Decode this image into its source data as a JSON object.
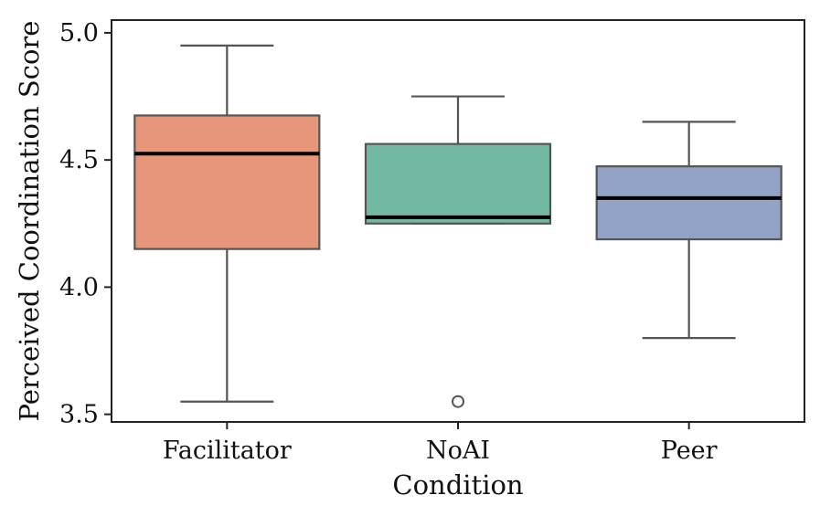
{
  "chart_data": {
    "type": "box",
    "xlabel": "Condition",
    "ylabel": "Perceived Coordination Score",
    "ylim": [
      3.47,
      5.05
    ],
    "yticks": [
      3.5,
      4.0,
      4.5,
      5.0
    ],
    "ytick_labels": [
      "3.5",
      "4.0",
      "4.5",
      "5.0"
    ],
    "grid": false,
    "series": [
      {
        "name": "Facilitator",
        "whisker_low": 3.55,
        "q1": 4.15,
        "median": 4.525,
        "q3": 4.675,
        "whisker_high": 4.95,
        "outliers": [],
        "color": "#e8967a"
      },
      {
        "name": "NoAI",
        "whisker_low": 4.25,
        "q1": 4.25,
        "median": 4.275,
        "q3": 4.563,
        "whisker_high": 4.75,
        "outliers": [
          3.55
        ],
        "color": "#72b8a2"
      },
      {
        "name": "Peer",
        "whisker_low": 3.8,
        "q1": 4.188,
        "median": 4.35,
        "q3": 4.475,
        "whisker_high": 4.65,
        "outliers": [],
        "color": "#93a3c6"
      }
    ]
  }
}
